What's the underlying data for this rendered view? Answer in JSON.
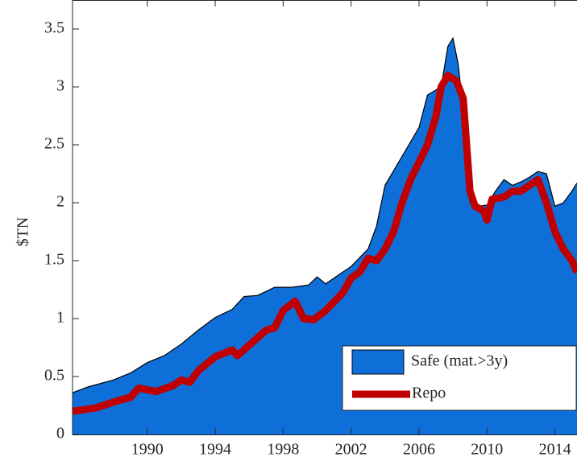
{
  "chart_data": {
    "type": "area-line",
    "ylabel": "$TN",
    "xlim": [
      1985.6,
      2015.3
    ],
    "ylim": [
      0,
      3.75
    ],
    "xticks": [
      1990,
      1994,
      1998,
      2002,
      2006,
      2010,
      2014
    ],
    "yticks": [
      0,
      0.5,
      1,
      1.5,
      2,
      2.5,
      3,
      3.5
    ],
    "legend": "lower right",
    "series": [
      {
        "name": "Safe (mat.>3y)",
        "kind": "area",
        "color": "#0f6fd9",
        "x": [
          1985.6,
          1986.5,
          1988,
          1989,
          1990,
          1991,
          1992,
          1993,
          1994,
          1995,
          1995.7,
          1996.5,
          1997.5,
          1998.5,
          1999.5,
          2000,
          2000.5,
          2001.5,
          2002,
          2003,
          2003.5,
          2004,
          2005,
          2006,
          2006.5,
          2007.3,
          2007.7,
          2008,
          2008.3,
          2008.6,
          2009,
          2009.5,
          2010,
          2010.5,
          2011,
          2011.5,
          2012,
          2012.5,
          2013,
          2013.5,
          2014,
          2014.5,
          2015,
          2015.3
        ],
        "values": [
          0.36,
          0.41,
          0.47,
          0.53,
          0.62,
          0.68,
          0.78,
          0.9,
          1.01,
          1.08,
          1.19,
          1.2,
          1.27,
          1.27,
          1.29,
          1.36,
          1.3,
          1.4,
          1.45,
          1.6,
          1.8,
          2.15,
          2.4,
          2.65,
          2.93,
          3.0,
          3.35,
          3.42,
          3.2,
          2.8,
          2.0,
          1.97,
          1.98,
          2.1,
          2.2,
          2.15,
          2.18,
          2.22,
          2.27,
          2.25,
          1.97,
          2.0,
          2.1,
          2.17
        ]
      },
      {
        "name": "Repo",
        "kind": "line",
        "color": "#c00000",
        "x": [
          1985.6,
          1987,
          1988,
          1989,
          1989.5,
          1990.5,
          1991.5,
          1992,
          1992.5,
          1993,
          1994,
          1995,
          1995.3,
          1996,
          1997,
          1997.5,
          1998,
          1998.7,
          1999.2,
          1999.8,
          2000.5,
          2001.5,
          2002,
          2002.5,
          2003,
          2003.5,
          2004,
          2004.5,
          2005,
          2005.5,
          2006,
          2006.5,
          2007,
          2007.3,
          2007.7,
          2008.2,
          2008.6,
          2009,
          2009.3,
          2009.8,
          2010,
          2010.3,
          2011,
          2011.5,
          2012,
          2012.5,
          2013,
          2013.5,
          2014,
          2014.5,
          2015,
          2015.3
        ],
        "values": [
          0.2,
          0.23,
          0.28,
          0.32,
          0.4,
          0.37,
          0.42,
          0.47,
          0.45,
          0.55,
          0.67,
          0.73,
          0.68,
          0.77,
          0.9,
          0.92,
          1.07,
          1.15,
          1.0,
          0.99,
          1.07,
          1.22,
          1.35,
          1.4,
          1.52,
          1.5,
          1.6,
          1.75,
          2.0,
          2.2,
          2.35,
          2.5,
          2.75,
          3.0,
          3.1,
          3.05,
          2.9,
          2.1,
          1.97,
          1.93,
          1.85,
          2.03,
          2.05,
          2.1,
          2.1,
          2.15,
          2.2,
          2.0,
          1.75,
          1.6,
          1.5,
          1.4
        ]
      }
    ]
  }
}
